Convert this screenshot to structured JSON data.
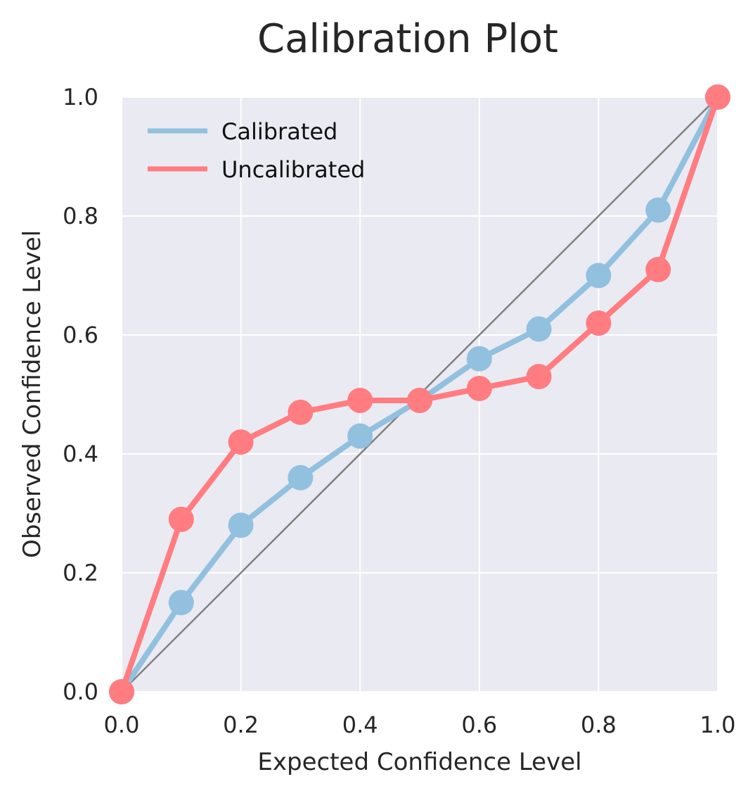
{
  "chart_data": {
    "type": "line",
    "title": "Calibration Plot",
    "xlabel": "Expected Confidence Level",
    "ylabel": "Observed Confidence Level",
    "xlim": [
      0.0,
      1.0
    ],
    "ylim": [
      0.0,
      1.0
    ],
    "xticks": [
      "0.0",
      "0.2",
      "0.4",
      "0.6",
      "0.8",
      "1.0"
    ],
    "yticks": [
      "0.0",
      "0.2",
      "0.4",
      "0.6",
      "0.8",
      "1.0"
    ],
    "grid": true,
    "legend_position": "top-left",
    "reference_line": {
      "x": [
        0.0,
        1.0
      ],
      "y": [
        0.0,
        1.0
      ],
      "color": "#808080"
    },
    "x": [
      0.0,
      0.1,
      0.2,
      0.3,
      0.4,
      0.5,
      0.6,
      0.7,
      0.8,
      0.9,
      1.0
    ],
    "series": [
      {
        "name": "Calibrated",
        "color": "#92c0df",
        "values": [
          0.0,
          0.15,
          0.28,
          0.36,
          0.43,
          0.49,
          0.56,
          0.61,
          0.7,
          0.81,
          1.0
        ]
      },
      {
        "name": "Uncalibrated",
        "color": "#ff7c80",
        "values": [
          0.0,
          0.29,
          0.42,
          0.47,
          0.49,
          0.49,
          0.51,
          0.53,
          0.62,
          0.71,
          1.0
        ]
      }
    ],
    "plot_background": "#eaeaf2"
  }
}
